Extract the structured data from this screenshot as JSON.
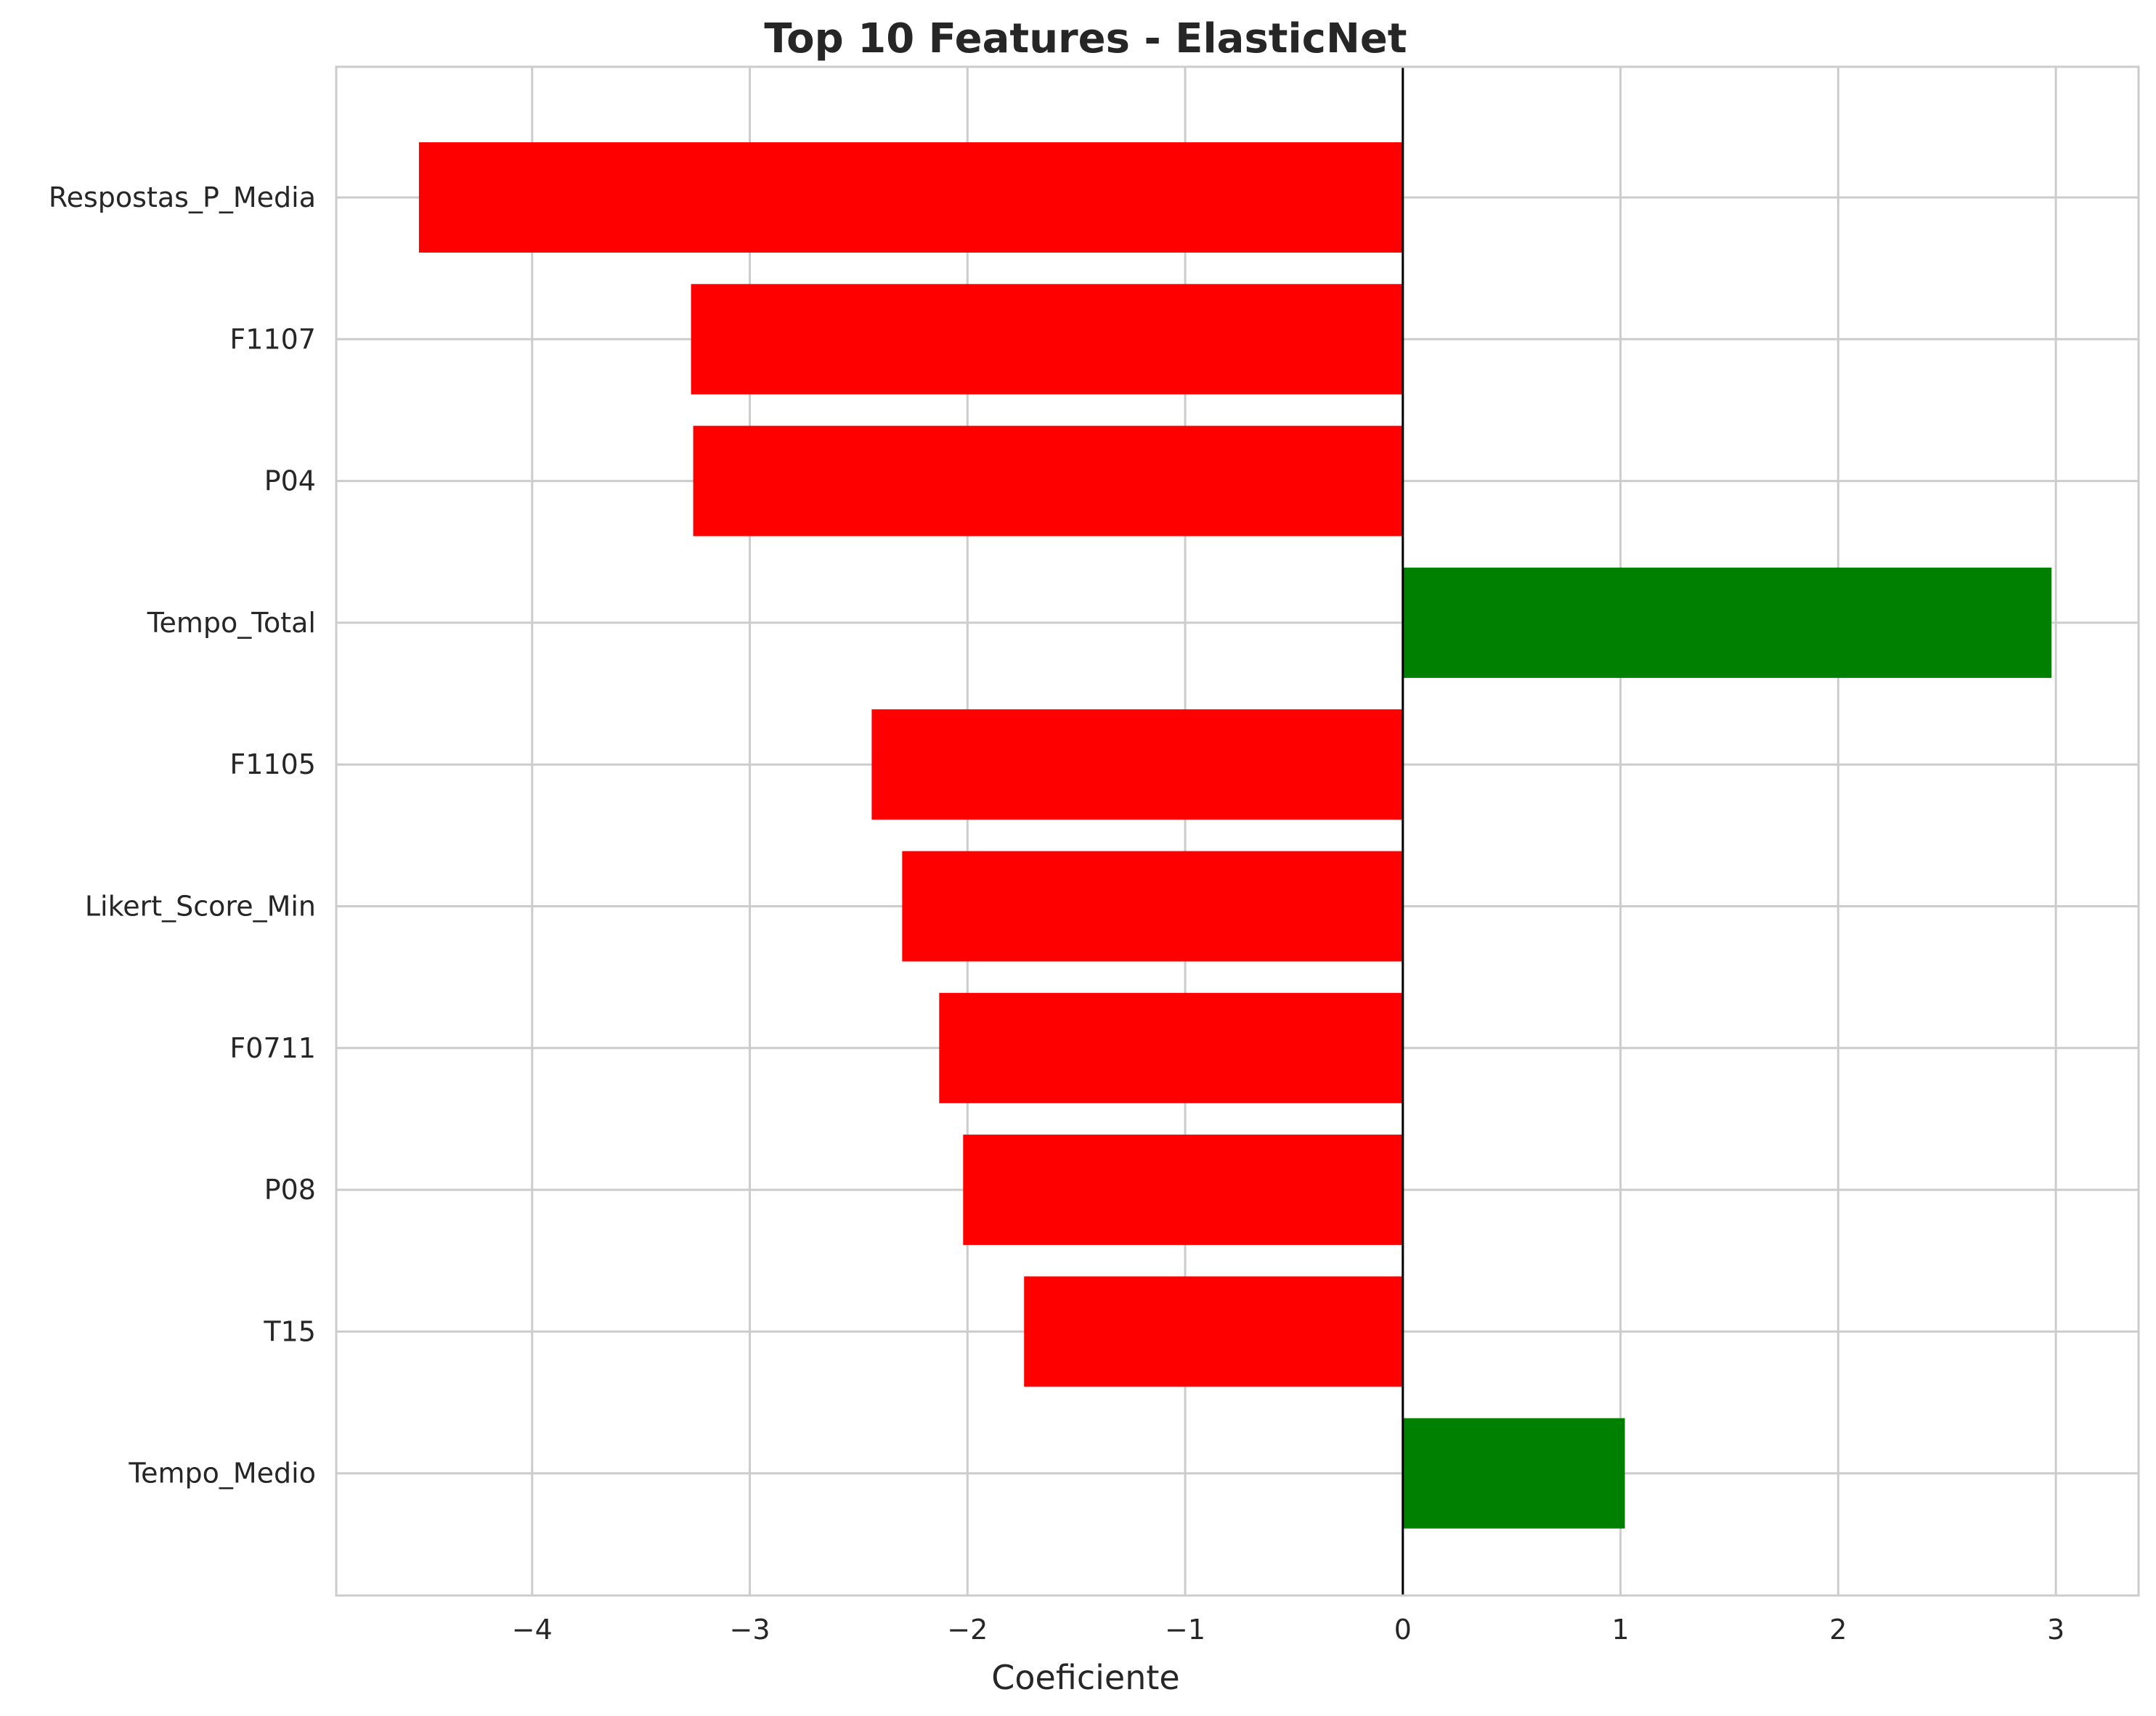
{
  "chart_data": {
    "type": "bar",
    "orientation": "horizontal",
    "title": "Top 10 Features - ElasticNet",
    "xlabel": "Coeficiente",
    "ylabel": "",
    "categories": [
      "Respostas_P_Media",
      "F1107",
      "P04",
      "Tempo_Total",
      "F1105",
      "Likert_Score_Min",
      "F0711",
      "P08",
      "T15",
      "Tempo_Medio"
    ],
    "values": [
      -4.52,
      -3.27,
      -3.26,
      2.98,
      -2.44,
      -2.3,
      -2.13,
      -2.02,
      -1.74,
      1.02
    ],
    "xlim": [
      -4.9,
      3.38
    ],
    "xticks": [
      -4,
      -3,
      -2,
      -1,
      0,
      1,
      2,
      3
    ],
    "xtick_labels": [
      "−4",
      "−3",
      "−2",
      "−1",
      "0",
      "1",
      "2",
      "3"
    ],
    "grid": true,
    "legend": "none",
    "colors": {
      "positive": "#008000",
      "negative": "#ff0000",
      "grid": "#cccccc",
      "zero_line": "#000000",
      "text": "#262626"
    }
  }
}
